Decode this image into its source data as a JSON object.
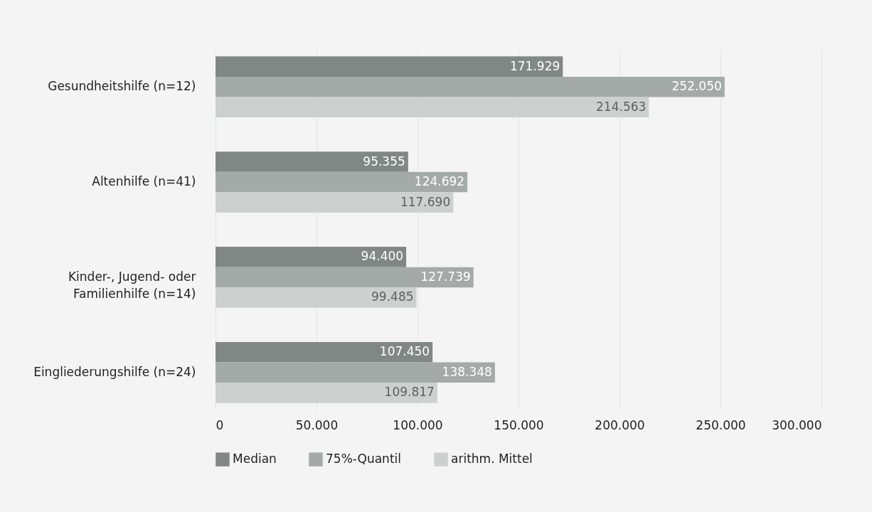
{
  "chart_data": {
    "type": "bar",
    "orientation": "horizontal",
    "categories": [
      "Gesundheitshilfe (n=12)",
      "Altenhilfe (n=41)",
      "Kinder-, Jugend- oder Familienhilfe (n=14)",
      "Eingliederungshilfe (n=24)"
    ],
    "series": [
      {
        "name": "Median",
        "color": "#808784",
        "values": [
          171929,
          95355,
          94400,
          107450
        ],
        "value_labels": [
          "171.929",
          "95.355",
          "94.400",
          "107.450"
        ]
      },
      {
        "name": "75%-Quantil",
        "color": "#a4aaa8",
        "values": [
          252050,
          124692,
          127739,
          138348
        ],
        "value_labels": [
          "252.050",
          "124.692",
          "127.739",
          "138.348"
        ]
      },
      {
        "name": "arithm. Mittel",
        "color": "#ccd1d0",
        "values": [
          214563,
          117690,
          99485,
          109817
        ],
        "value_labels": [
          "214.563",
          "117.690",
          "99.485",
          "109.817"
        ]
      }
    ],
    "xlim": [
      0,
      300000
    ],
    "xticks": [
      0,
      {
        "value": 50000,
        "label": "50.000"
      },
      {
        "value": 100000,
        "label": "100.000"
      },
      {
        "value": 150000,
        "label": "150.000"
      },
      {
        "value": 200000,
        "label": "200.000"
      },
      {
        "value": 250000,
        "label": "250.000"
      },
      {
        "value": 300000,
        "label": "300.000"
      }
    ],
    "grid": "x",
    "legend": "bottom"
  }
}
